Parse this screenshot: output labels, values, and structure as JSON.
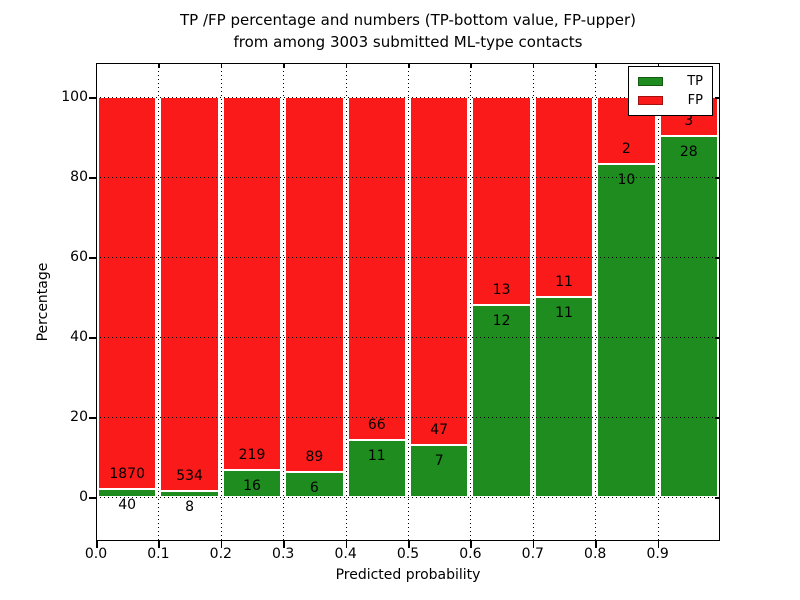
{
  "figure": {
    "title_line1": "TP /FP percentage and numbers (TP-bottom value, FP-upper)",
    "title_line2": "from among 3003 submitted ML-type contacts"
  },
  "colors": {
    "tp": "#1e8c1e",
    "fp": "#fb1a1a",
    "grid": "#000000",
    "background": "#ffffff"
  },
  "legend": {
    "position": "upper right",
    "entries": [
      {
        "label": "TP",
        "color": "#1e8c1e"
      },
      {
        "label": "FP",
        "color": "#fb1a1a"
      }
    ]
  },
  "chart_data": {
    "type": "bar",
    "stacked": true,
    "normalized_to_percent": true,
    "title": "TP /FP percentage and numbers (TP-bottom value, FP-upper)\nfrom among 3003 submitted ML-type contacts",
    "xlabel": "Predicted probability",
    "ylabel": "Percentage",
    "x_tick_labels": [
      "0.0",
      "0.1",
      "0.2",
      "0.3",
      "0.4",
      "0.5",
      "0.6",
      "0.7",
      "0.8",
      "0.9"
    ],
    "y_ticks": [
      0,
      20,
      40,
      60,
      80,
      100
    ],
    "y_tick_labels": [
      "0",
      "20",
      "40",
      "60",
      "80",
      "100"
    ],
    "xlim": [
      0.0,
      1.0
    ],
    "ylim": [
      -11,
      108.5
    ],
    "grid": true,
    "grid_style": "dotted",
    "legend_position": "upper right",
    "bin_width": 0.1,
    "categories": [
      "0.0",
      "0.1",
      "0.2",
      "0.3",
      "0.4",
      "0.5",
      "0.6",
      "0.7",
      "0.8",
      "0.9"
    ],
    "series": [
      {
        "name": "TP",
        "color": "#1e8c1e",
        "counts": [
          40,
          8,
          16,
          6,
          11,
          7,
          12,
          11,
          10,
          28
        ]
      },
      {
        "name": "FP",
        "color": "#fb1a1a",
        "counts": [
          1870,
          534,
          219,
          89,
          66,
          47,
          13,
          11,
          2,
          3
        ]
      }
    ],
    "bins": [
      {
        "x_start": 0.0,
        "tp": 40,
        "fp": 1870,
        "tp_pct": 2.09,
        "fp_pct": 97.91
      },
      {
        "x_start": 0.1,
        "tp": 8,
        "fp": 534,
        "tp_pct": 1.48,
        "fp_pct": 98.52
      },
      {
        "x_start": 0.2,
        "tp": 16,
        "fp": 219,
        "tp_pct": 6.81,
        "fp_pct": 93.19
      },
      {
        "x_start": 0.3,
        "tp": 6,
        "fp": 89,
        "tp_pct": 6.32,
        "fp_pct": 93.68
      },
      {
        "x_start": 0.4,
        "tp": 11,
        "fp": 66,
        "tp_pct": 14.29,
        "fp_pct": 85.71
      },
      {
        "x_start": 0.5,
        "tp": 7,
        "fp": 47,
        "tp_pct": 12.96,
        "fp_pct": 87.04
      },
      {
        "x_start": 0.6,
        "tp": 12,
        "fp": 13,
        "tp_pct": 48.0,
        "fp_pct": 52.0
      },
      {
        "x_start": 0.7,
        "tp": 11,
        "fp": 11,
        "tp_pct": 50.0,
        "fp_pct": 50.0
      },
      {
        "x_start": 0.8,
        "tp": 10,
        "fp": 2,
        "tp_pct": 83.33,
        "fp_pct": 16.67
      },
      {
        "x_start": 0.9,
        "tp": 28,
        "fp": 3,
        "tp_pct": 90.32,
        "fp_pct": 9.68
      }
    ],
    "annotation_note": "TP count printed below the TP/FP boundary, FP count printed above it, per bar"
  }
}
